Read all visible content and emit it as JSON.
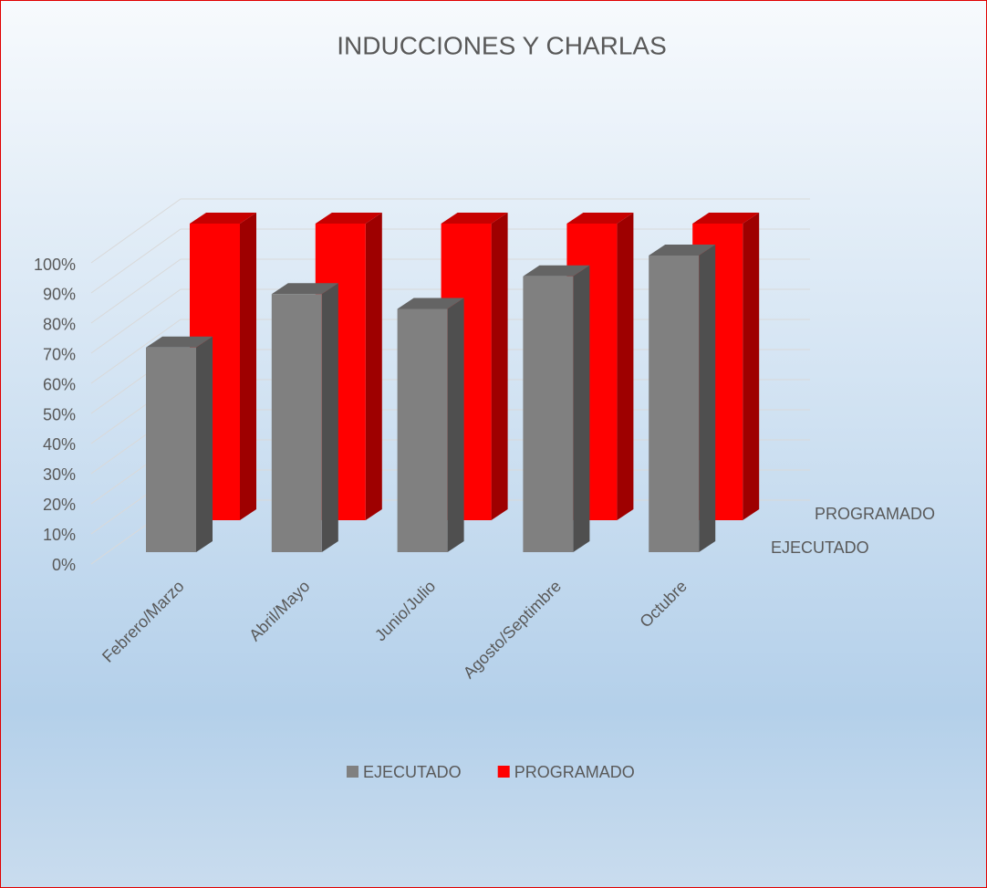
{
  "chart_data": {
    "type": "bar3d",
    "title": "INDUCCIONES Y CHARLAS",
    "categories": [
      "Febrero/Marzo",
      "Abril/Mayo",
      "Junio/Julio",
      "Agosto/Septimbre",
      "Octubre"
    ],
    "series": [
      {
        "name": "EJECUTADO",
        "color": "#808080",
        "values": [
          69,
          87,
          82,
          93,
          100
        ]
      },
      {
        "name": "PROGRAMADO",
        "color": "#ff0000",
        "values": [
          100,
          100,
          100,
          100,
          100
        ]
      }
    ],
    "ylim": [
      0,
      100
    ],
    "yticks": [
      {
        "value": 0,
        "label": "0%"
      },
      {
        "value": 10,
        "label": "10%"
      },
      {
        "value": 20,
        "label": "20%"
      },
      {
        "value": 30,
        "label": "30%"
      },
      {
        "value": 40,
        "label": "40%"
      },
      {
        "value": 50,
        "label": "50%"
      },
      {
        "value": 60,
        "label": "60%"
      },
      {
        "value": 70,
        "label": "70%"
      },
      {
        "value": 80,
        "label": "80%"
      },
      {
        "value": 90,
        "label": "90%"
      },
      {
        "value": 100,
        "label": "100%"
      }
    ],
    "grid": true,
    "legend": "bottom"
  }
}
